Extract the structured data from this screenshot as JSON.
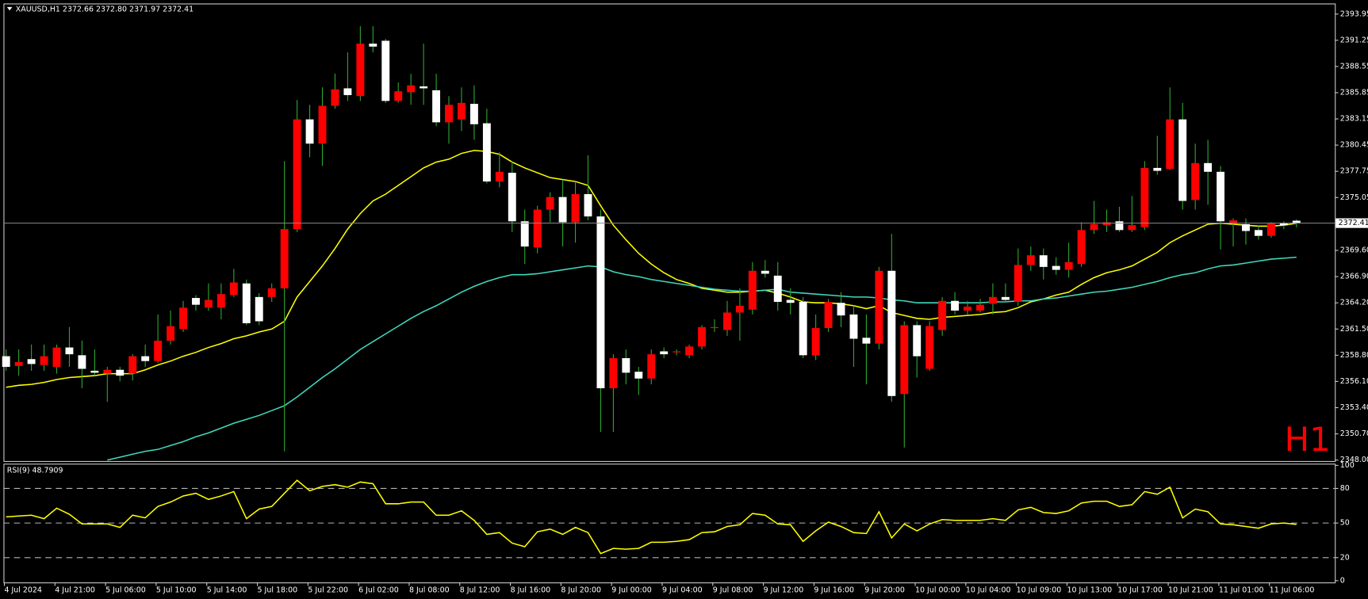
{
  "chart_data": [
    {
      "type": "candlestick",
      "title": "XAUUSD,H1  2372.66 2372.80 2371.97 2372.41",
      "annotation": "H1",
      "up_color": "#ff0000",
      "down_color": "#ffffff",
      "wick_color": "#2ea82e",
      "price_line_color": "#8c8c8c",
      "ylim": [
        2347.9,
        2394.95
      ],
      "yticks": [
        2393.95,
        2391.25,
        2388.55,
        2385.85,
        2383.15,
        2380.45,
        2377.75,
        2375.05,
        {
          "value": 2369.6,
          "label": "2369.60"
        },
        {
          "value": 2366.9,
          "label": "2366.90"
        },
        {
          "value": 2364.2,
          "label": "2364.20"
        },
        {
          "value": 2361.5,
          "label": "2361.50"
        },
        {
          "value": 2358.8,
          "label": "2358.80"
        },
        {
          "value": 2356.1,
          "label": "2356.10"
        },
        {
          "value": 2353.4,
          "label": "2353.40"
        },
        {
          "value": 2350.7,
          "label": "2350.70"
        },
        {
          "value": 2348,
          "label": "2348.00"
        }
      ],
      "categories": [
        "4 Jul 2024",
        null,
        null,
        null,
        "4 Jul 21:00",
        null,
        null,
        null,
        "5 Jul 06:00",
        null,
        null,
        null,
        "5 Jul 10:00",
        null,
        null,
        null,
        "5 Jul 14:00",
        null,
        null,
        null,
        "5 Jul 18:00",
        null,
        null,
        null,
        "5 Jul 22:00",
        null,
        null,
        null,
        "6 Jul 02:00",
        null,
        null,
        null,
        "8 Jul 08:00",
        null,
        null,
        null,
        "8 Jul 12:00",
        null,
        null,
        null,
        "8 Jul 16:00",
        null,
        null,
        null,
        "8 Jul 20:00",
        null,
        null,
        null,
        "9 Jul 00:00",
        null,
        null,
        null,
        "9 Jul 04:00",
        null,
        null,
        null,
        "9 Jul 08:00",
        null,
        null,
        null,
        "9 Jul 12:00",
        null,
        null,
        null,
        "9 Jul 16:00",
        null,
        null,
        null,
        "9 Jul 20:00",
        null,
        null,
        null,
        "10 Jul 00:00",
        null,
        null,
        null,
        "10 Jul 04:00",
        null,
        null,
        null,
        "10 Jul 09:00",
        null,
        null,
        null,
        "10 Jul 13:00",
        null,
        null,
        null,
        "10 Jul 17:00",
        null,
        null,
        null,
        "10 Jul 21:00",
        null,
        null,
        null,
        "11 Jul 01:00",
        null,
        null,
        null,
        "11 Jul 06:00",
        null,
        null
      ],
      "open": [
        2358.7,
        2357.7,
        2358.4,
        2357.8,
        2357.6,
        2359.6,
        2358.8,
        2357.2,
        2356.9,
        2357.3,
        2356.9,
        2358.7,
        2358.2,
        2360.3,
        2361.5,
        2364.7,
        2363.7,
        2363.7,
        2365.0,
        2366.2,
        2364.8,
        2364.8,
        2365.7,
        2371.8,
        2383.1,
        2380.6,
        2384.5,
        2386.3,
        2385.5,
        2390.9,
        2391.2,
        2385.0,
        2385.9,
        2386.5,
        2386.1,
        2382.8,
        2383.1,
        2384.7,
        2382.7,
        2376.7,
        2377.6,
        2372.6,
        2369.9,
        2373.8,
        2375.1,
        2372.5,
        2375.4,
        2373.1,
        2355.4,
        2358.5,
        2357.1,
        2356.4,
        2359.2,
        2359.1,
        2358.8,
        2359.7,
        2361.6,
        2361.4,
        2363.2,
        2363.5,
        2367.5,
        2367.0,
        2364.5,
        2364.3,
        2358.8,
        2361.6,
        2364.2,
        2363.0,
        2360.6,
        2360.0,
        2367.5,
        2354.8,
        2361.9,
        2357.4,
        2361.4,
        2364.4,
        2363.4,
        2363.4,
        2364.1,
        2364.8,
        2364.3,
        2368.1,
        2369.1,
        2368.0,
        2367.6,
        2368.2,
        2371.7,
        2372.2,
        2372.6,
        2371.7,
        2372.0,
        2378.1,
        2378.0,
        2383.1,
        2374.8,
        2378.6,
        2377.7,
        2372.4,
        2372.3,
        2371.7,
        2371.1,
        2372.4,
        2372.66
      ],
      "high": [
        2359.4,
        2359.4,
        2359.9,
        2359.9,
        2359.9,
        2361.7,
        2360.3,
        2359.4,
        2357.6,
        2357.6,
        2358.9,
        2359.9,
        2363.0,
        2363.4,
        2364.4,
        2365.0,
        2366.2,
        2366.2,
        2367.7,
        2366.6,
        2365.2,
        2366.2,
        2378.8,
        2385.1,
        2384.6,
        2386.4,
        2387.8,
        2390.0,
        2392.7,
        2392.7,
        2391.4,
        2386.9,
        2387.8,
        2390.9,
        2387.8,
        2385.5,
        2386.4,
        2386.6,
        2384.2,
        2379.7,
        2378.8,
        2373.8,
        2374.2,
        2375.6,
        2376.9,
        2376.7,
        2379.4,
        2373.8,
        2358.9,
        2359.4,
        2357.6,
        2359.4,
        2359.6,
        2359.4,
        2359.9,
        2361.9,
        2362.5,
        2364.4,
        2365.7,
        2368.4,
        2368.6,
        2368.4,
        2365.7,
        2364.8,
        2363.0,
        2364.6,
        2365.3,
        2363.9,
        2363.0,
        2367.9,
        2371.3,
        2362.3,
        2362.3,
        2362.3,
        2364.8,
        2365.3,
        2364.4,
        2364.6,
        2366.2,
        2366.2,
        2369.8,
        2370.0,
        2369.8,
        2368.9,
        2370.4,
        2372.5,
        2374.7,
        2373.8,
        2374.1,
        2375.2,
        2378.8,
        2381.4,
        2386.4,
        2384.8,
        2380.6,
        2381.0,
        2378.3,
        2372.9,
        2372.9,
        2372.2,
        2372.5,
        2372.6,
        2372.8
      ],
      "low": [
        2357.2,
        2356.7,
        2357.2,
        2357.2,
        2356.9,
        2357.6,
        2355.4,
        2356.7,
        2354.0,
        2356.1,
        2356.2,
        2357.6,
        2358.0,
        2359.9,
        2361.2,
        2363.4,
        2363.4,
        2362.5,
        2364.8,
        2361.9,
        2361.9,
        2364.3,
        2348.9,
        2371.5,
        2379.2,
        2378.3,
        2384.2,
        2385.0,
        2385.0,
        2390.0,
        2384.8,
        2384.8,
        2384.6,
        2384.6,
        2382.4,
        2380.6,
        2381.9,
        2381.0,
        2376.5,
        2376.1,
        2371.5,
        2368.2,
        2369.3,
        2372.5,
        2370.0,
        2370.4,
        2372.7,
        2350.9,
        2350.9,
        2355.8,
        2354.7,
        2355.8,
        2358.5,
        2358.8,
        2358.5,
        2359.4,
        2361.2,
        2360.8,
        2360.3,
        2363.0,
        2366.8,
        2363.4,
        2363.0,
        2358.5,
        2358.3,
        2361.2,
        2361.7,
        2357.6,
        2355.8,
        2359.4,
        2354.0,
        2349.3,
        2356.5,
        2357.2,
        2360.8,
        2363.0,
        2363.0,
        2363.2,
        2363.0,
        2364.3,
        2363.9,
        2367.5,
        2366.6,
        2367.1,
        2366.8,
        2367.9,
        2371.3,
        2371.5,
        2371.5,
        2371.5,
        2371.7,
        2377.4,
        2377.9,
        2373.8,
        2373.8,
        2374.3,
        2369.7,
        2370.0,
        2370.2,
        2370.7,
        2370.9,
        2371.8,
        2371.97
      ],
      "close": [
        2357.6,
        2358.1,
        2357.9,
        2358.7,
        2359.6,
        2358.9,
        2357.4,
        2357.0,
        2357.3,
        2356.7,
        2358.7,
        2358.2,
        2360.3,
        2361.8,
        2363.7,
        2364.0,
        2364.5,
        2365.1,
        2366.3,
        2362.1,
        2362.3,
        2365.7,
        2371.8,
        2383.1,
        2380.6,
        2384.5,
        2386.2,
        2385.6,
        2390.9,
        2390.6,
        2385.0,
        2386.0,
        2386.6,
        2386.3,
        2382.8,
        2384.6,
        2384.8,
        2382.6,
        2376.7,
        2377.7,
        2372.6,
        2370.0,
        2373.8,
        2375.1,
        2372.5,
        2375.4,
        2373.1,
        2355.4,
        2358.5,
        2357.0,
        2356.4,
        2358.9,
        2358.9,
        2359.2,
        2359.7,
        2361.7,
        2361.7,
        2363.2,
        2363.9,
        2367.5,
        2367.2,
        2364.3,
        2364.2,
        2358.8,
        2361.6,
        2364.3,
        2362.9,
        2360.5,
        2360.0,
        2367.5,
        2354.6,
        2361.9,
        2358.7,
        2361.8,
        2364.4,
        2363.4,
        2363.8,
        2364.0,
        2364.8,
        2364.5,
        2368.1,
        2369.1,
        2367.9,
        2367.6,
        2368.4,
        2371.7,
        2372.3,
        2372.5,
        2371.7,
        2372.2,
        2378.1,
        2377.8,
        2383.1,
        2374.7,
        2378.6,
        2377.7,
        2372.6,
        2372.7,
        2371.6,
        2371.1,
        2372.4,
        2372.2,
        2372.41
      ],
      "series": [
        {
          "color": "#ffff00",
          "values": [
            2355.5,
            2355.7,
            2355.8,
            2356.0,
            2356.3,
            2356.5,
            2356.6,
            2356.7,
            2356.9,
            2356.9,
            2356.9,
            2357.3,
            2357.8,
            2358.2,
            2358.7,
            2359.1,
            2359.6,
            2360.0,
            2360.5,
            2360.8,
            2361.2,
            2361.5,
            2362.3,
            2364.8,
            2366.4,
            2368.0,
            2369.8,
            2371.8,
            2373.4,
            2374.7,
            2375.4,
            2376.3,
            2377.2,
            2378.1,
            2378.7,
            2379.0,
            2379.6,
            2379.9,
            2379.8,
            2379.5,
            2378.7,
            2378.1,
            2377.6,
            2377.1,
            2376.9,
            2376.7,
            2376.3,
            2374.2,
            2372.2,
            2370.7,
            2369.3,
            2368.2,
            2367.3,
            2366.6,
            2366.2,
            2365.7,
            2365.5,
            2365.3,
            2365.3,
            2365.4,
            2365.5,
            2365.2,
            2364.8,
            2364.3,
            2364.2,
            2364.2,
            2364.1,
            2363.9,
            2363.6,
            2363.9,
            2363.2,
            2362.9,
            2362.6,
            2362.5,
            2362.7,
            2362.8,
            2362.9,
            2363.0,
            2363.2,
            2363.3,
            2363.7,
            2364.3,
            2364.6,
            2365.0,
            2365.3,
            2366.1,
            2366.8,
            2367.3,
            2367.6,
            2368.0,
            2368.7,
            2369.4,
            2370.4,
            2371.1,
            2371.7,
            2372.3,
            2372.4,
            2372.3,
            2372.2,
            2372.1,
            2372.1,
            2372.2,
            2372.4
          ]
        },
        {
          "color": "#3fd9bd",
          "values": [
            null,
            null,
            null,
            null,
            null,
            null,
            null,
            null,
            2348.0,
            2348.3,
            2348.6,
            2348.9,
            2349.1,
            2349.5,
            2349.9,
            2350.4,
            2350.8,
            2351.3,
            2351.8,
            2352.2,
            2352.6,
            2353.1,
            2353.6,
            2354.5,
            2355.5,
            2356.5,
            2357.4,
            2358.4,
            2359.4,
            2360.2,
            2361.0,
            2361.8,
            2362.6,
            2363.3,
            2363.9,
            2364.6,
            2365.3,
            2365.9,
            2366.4,
            2366.8,
            2367.1,
            2367.1,
            2367.2,
            2367.4,
            2367.6,
            2367.8,
            2368.0,
            2367.9,
            2367.4,
            2367.1,
            2366.9,
            2366.6,
            2366.4,
            2366.2,
            2366.0,
            2365.8,
            2365.6,
            2365.5,
            2365.4,
            2365.4,
            2365.5,
            2365.6,
            2365.3,
            2365.2,
            2365.1,
            2365.0,
            2364.9,
            2364.8,
            2364.8,
            2364.7,
            2364.5,
            2364.4,
            2364.2,
            2364.2,
            2364.2,
            2364.2,
            2364.2,
            2364.2,
            2364.3,
            2364.3,
            2364.4,
            2364.4,
            2364.6,
            2364.7,
            2364.9,
            2365.1,
            2365.3,
            2365.4,
            2365.6,
            2365.8,
            2366.1,
            2366.4,
            2366.8,
            2367.1,
            2367.3,
            2367.7,
            2368.0,
            2368.1,
            2368.3,
            2368.5,
            2368.7,
            2368.8,
            2368.9
          ]
        }
      ]
    },
    {
      "type": "line",
      "title": "RSI(9) 48.7909",
      "ylim": [
        0,
        100
      ],
      "yticks": [
        100,
        80,
        50,
        20,
        0
      ],
      "levels": [
        80,
        50,
        20
      ],
      "level_color": "#b4b4b4",
      "series": [
        {
          "color": "#ffff00",
          "values": [
            55.3,
            56.1,
            56.8,
            53.8,
            62.9,
            57.6,
            49.2,
            49.2,
            49.2,
            46.2,
            56.8,
            54.5,
            64.4,
            68.2,
            73.5,
            75.8,
            70.5,
            73.5,
            77.3,
            53.8,
            62.1,
            64.4,
            75.8,
            87.1,
            78.0,
            81.8,
            83.3,
            81.1,
            85.6,
            84.1,
            66.7,
            66.7,
            68.2,
            68.2,
            56.8,
            56.8,
            60.6,
            52.3,
            40.2,
            41.7,
            32.6,
            29.5,
            42.4,
            44.7,
            40.2,
            46.2,
            41.7,
            23.5,
            28.0,
            27.3,
            28.0,
            33.3,
            33.3,
            34.1,
            35.6,
            41.7,
            42.4,
            47.0,
            48.5,
            58.3,
            56.8,
            49.2,
            48.5,
            34.1,
            43.2,
            50.8,
            47.0,
            41.7,
            40.9,
            59.8,
            37.1,
            49.2,
            43.2,
            49.2,
            53.0,
            52.3,
            52.3,
            52.3,
            53.8,
            52.3,
            61.4,
            63.6,
            59.1,
            58.3,
            60.6,
            67.4,
            68.9,
            68.9,
            64.4,
            65.9,
            77.3,
            75.0,
            81.1,
            54.5,
            62.1,
            59.8,
            49.2,
            48.5,
            47.0,
            45.5,
            49.2,
            50.0,
            48.8
          ]
        }
      ]
    }
  ]
}
